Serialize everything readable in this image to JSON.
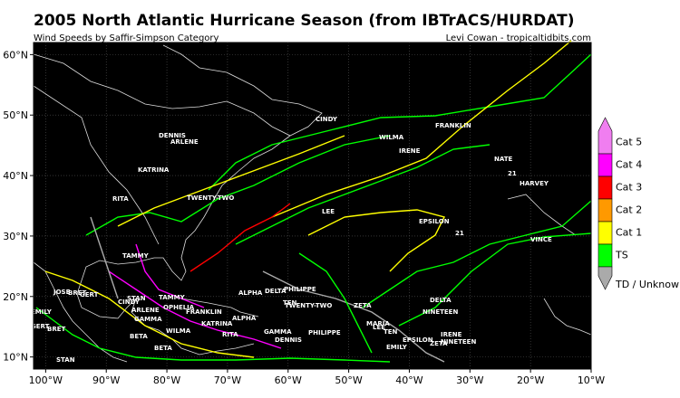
{
  "header": {
    "title": "2005 North Atlantic Hurricane Season (from IBTrACS/HURDAT)",
    "subtitle": "Wind Speeds by Saffir-Simpson Category",
    "credit": "Levi Cowan - tropicaltidbits.com"
  },
  "map": {
    "xlim": [
      -102,
      -10
    ],
    "ylim": [
      8,
      62
    ],
    "xticks": [
      {
        "value": -100,
        "label": "100°W"
      },
      {
        "value": -90,
        "label": "90°W"
      },
      {
        "value": -80,
        "label": "80°W"
      },
      {
        "value": -70,
        "label": "70°W"
      },
      {
        "value": -60,
        "label": "60°W"
      },
      {
        "value": -50,
        "label": "50°W"
      },
      {
        "value": -40,
        "label": "40°W"
      },
      {
        "value": -30,
        "label": "30°W"
      },
      {
        "value": -20,
        "label": "20°W"
      },
      {
        "value": -10,
        "label": "10°W"
      }
    ],
    "yticks": [
      {
        "value": 10,
        "label": "10°N"
      },
      {
        "value": 20,
        "label": "20°N"
      },
      {
        "value": 30,
        "label": "30°N"
      },
      {
        "value": 40,
        "label": "40°N"
      },
      {
        "value": 50,
        "label": "50°N"
      },
      {
        "value": 60,
        "label": "60°N"
      }
    ],
    "grid": true
  },
  "legend": {
    "items": [
      {
        "label": "Cat 5",
        "color": "#f07ef0"
      },
      {
        "label": "Cat 4",
        "color": "#ff00ff"
      },
      {
        "label": "Cat 3",
        "color": "#ff0000"
      },
      {
        "label": "Cat 2",
        "color": "#ff9900"
      },
      {
        "label": "Cat 1",
        "color": "#ffff00"
      },
      {
        "label": "TS",
        "color": "#00ff00"
      },
      {
        "label": "TD / Unknown",
        "color": "#aaaaaa"
      }
    ]
  },
  "storm_labels": [
    "CINDY",
    "DENNIS",
    "ARLENE",
    "FRANKLIN",
    "WILMA",
    "IRENE",
    "RITA",
    "KATRINA",
    "TWENTY-TWO",
    "NATE",
    "21",
    "HARVEY",
    "LEE",
    "EPSILON",
    "21",
    "VINCE",
    "TAMMY",
    "TAMMY",
    "OPHELIA",
    "FRANKLIN",
    "ALPHA",
    "DELTA",
    "PHILIPPE",
    "TWENTY-TWO",
    "ZETA",
    "DELTA",
    "EPSILON",
    "ZETA",
    "KATRINA",
    "RITA",
    "EMILY",
    "GERT",
    "BRET",
    "JOSE",
    "BRET",
    "GERT",
    "STAN",
    "STAN",
    "CINDY",
    "ARLENE",
    "WILMA",
    "GAMMA",
    "ALPHA",
    "TEN",
    "MARIA",
    "NINETEEN",
    "BETA",
    "GAMMA",
    "DENNIS",
    "PHILIPPE",
    "LEE",
    "TEN",
    "IRENE",
    "NINETEEN",
    "EMILY",
    "BETA"
  ]
}
